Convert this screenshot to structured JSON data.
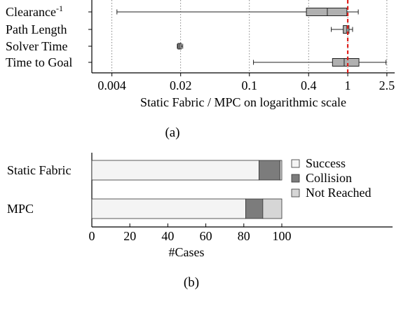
{
  "chart_data": [
    {
      "type": "box",
      "panel_label": "(a)",
      "xlabel": "Static Fabric / MPC on logarithmic scale",
      "xscale": "log",
      "xlim": [
        0.0025,
        3.0
      ],
      "x_ticks": [
        0.004,
        0.02,
        0.1,
        0.4,
        1,
        2.5
      ],
      "x_tick_labels": [
        "0.004",
        "0.02",
        "0.1",
        "0.4",
        "1",
        "2.5"
      ],
      "grid": "vertical dotted at ticks",
      "reference_line": {
        "x": 1,
        "style": "red dashed"
      },
      "categories": [
        "Clearance",
        "Path Length",
        "Solver Time",
        "Time to Goal"
      ],
      "category_superscripts": [
        "-1",
        "",
        "",
        ""
      ],
      "boxes": [
        {
          "whisker_low": 0.0045,
          "q1": 0.38,
          "median": 0.62,
          "q3": 0.98,
          "whisker_high": 1.28
        },
        {
          "whisker_low": 0.68,
          "q1": 0.9,
          "median": 0.98,
          "q3": 1.03,
          "whisker_high": 1.12
        },
        {
          "whisker_low": 0.0185,
          "q1": 0.0188,
          "median": 0.0195,
          "q3": 0.0203,
          "whisker_high": 0.021
        },
        {
          "whisker_low": 0.11,
          "q1": 0.7,
          "median": 0.92,
          "q3": 1.3,
          "whisker_high": 2.45
        }
      ],
      "colors": {
        "box_fill": "#b0b0b0",
        "reference": "#e0201c",
        "grid": "#666666"
      }
    },
    {
      "type": "bar",
      "orientation": "horizontal",
      "stacked": true,
      "panel_label": "(b)",
      "xlabel": "#Cases",
      "xlim": [
        0,
        100
      ],
      "x_ticks": [
        0,
        20,
        40,
        60,
        80,
        100
      ],
      "categories": [
        "Static Fabric",
        "MPC"
      ],
      "series": [
        {
          "name": "Success",
          "values": [
            88,
            81
          ],
          "color": "#f4f4f4"
        },
        {
          "name": "Collision",
          "values": [
            11,
            9
          ],
          "color": "#7c7c7c"
        },
        {
          "name": "Not Reached",
          "values": [
            1,
            10
          ],
          "color": "#d6d6d6"
        }
      ],
      "legend": {
        "position": "right"
      }
    }
  ]
}
